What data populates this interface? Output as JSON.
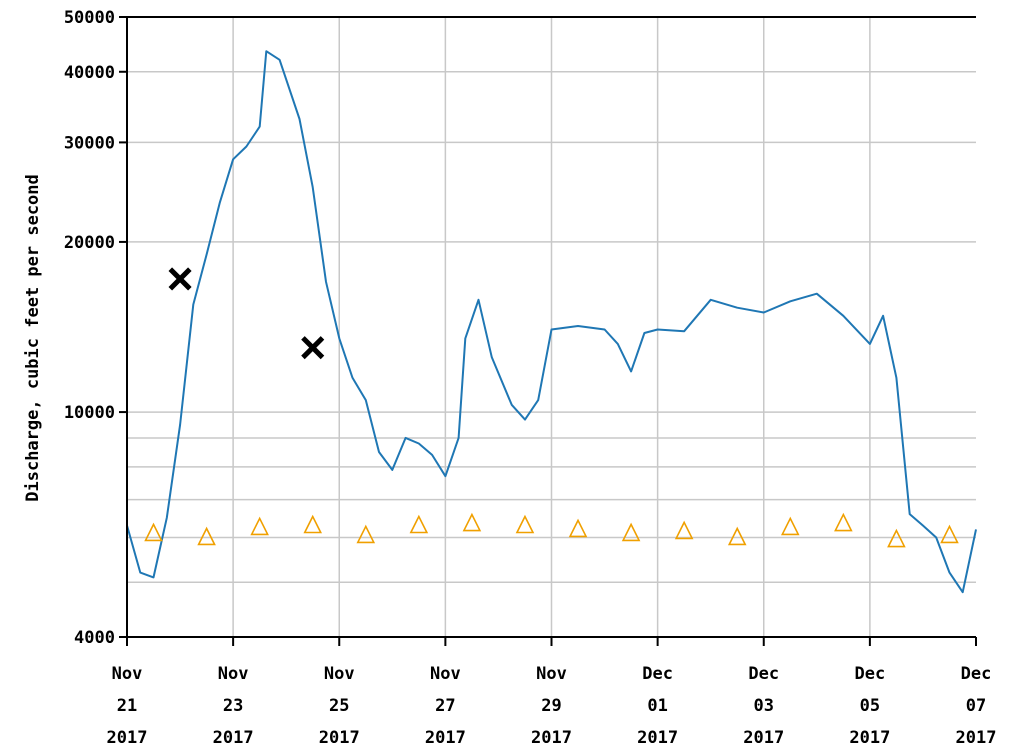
{
  "chart_data": {
    "type": "line",
    "title": "",
    "ylabel": "Discharge, cubic feet per second",
    "xlabel": "",
    "y_scale": "log",
    "ylim": [
      4000,
      50000
    ],
    "xlim": [
      "2017-11-21",
      "2017-12-07"
    ],
    "y_ticks": [
      {
        "value": 4000,
        "label": "4000"
      },
      {
        "value": 10000,
        "label": "10000"
      },
      {
        "value": 20000,
        "label": "20000"
      },
      {
        "value": 30000,
        "label": "30000"
      },
      {
        "value": 40000,
        "label": "40000"
      },
      {
        "value": 50000,
        "label": "50000"
      }
    ],
    "x_ticks": [
      {
        "date": "2017-11-21",
        "month": "Nov",
        "day": "21",
        "year": "2017"
      },
      {
        "date": "2017-11-23",
        "month": "Nov",
        "day": "23",
        "year": "2017"
      },
      {
        "date": "2017-11-25",
        "month": "Nov",
        "day": "25",
        "year": "2017"
      },
      {
        "date": "2017-11-27",
        "month": "Nov",
        "day": "27",
        "year": "2017"
      },
      {
        "date": "2017-11-29",
        "month": "Nov",
        "day": "29",
        "year": "2017"
      },
      {
        "date": "2017-12-01",
        "month": "Dec",
        "day": "01",
        "year": "2017"
      },
      {
        "date": "2017-12-03",
        "month": "Dec",
        "day": "03",
        "year": "2017"
      },
      {
        "date": "2017-12-05",
        "month": "Dec",
        "day": "05",
        "year": "2017"
      },
      {
        "date": "2017-12-07",
        "month": "Dec",
        "day": "07",
        "year": "2017"
      }
    ],
    "grid": true,
    "colors": {
      "discharge": "#1f77b4",
      "median": "#f0a000",
      "measurement": "#000000",
      "grid": "#c8c8c8"
    },
    "series": [
      {
        "style": "line",
        "points": [
          [
            "2017-11-21T00:00",
            6300
          ],
          [
            "2017-11-21T06:00",
            5200
          ],
          [
            "2017-11-21T12:00",
            5100
          ],
          [
            "2017-11-21T18:00",
            6500
          ],
          [
            "2017-11-22T00:00",
            9500
          ],
          [
            "2017-11-22T06:00",
            15500
          ],
          [
            "2017-11-22T12:00",
            19000
          ],
          [
            "2017-11-22T18:00",
            23500
          ],
          [
            "2017-11-23T00:00",
            28000
          ],
          [
            "2017-11-23T06:00",
            29500
          ],
          [
            "2017-11-23T12:00",
            32000
          ],
          [
            "2017-11-23T15:00",
            43500
          ],
          [
            "2017-11-23T21:00",
            42000
          ],
          [
            "2017-11-24T06:00",
            33000
          ],
          [
            "2017-11-24T12:00",
            25000
          ],
          [
            "2017-11-24T18:00",
            17000
          ],
          [
            "2017-11-25T00:00",
            13500
          ],
          [
            "2017-11-25T06:00",
            11500
          ],
          [
            "2017-11-25T12:00",
            10500
          ],
          [
            "2017-11-25T18:00",
            8500
          ],
          [
            "2017-11-26T00:00",
            7900
          ],
          [
            "2017-11-26T06:00",
            9000
          ],
          [
            "2017-11-26T12:00",
            8800
          ],
          [
            "2017-11-26T18:00",
            8400
          ],
          [
            "2017-11-27T00:00",
            7700
          ],
          [
            "2017-11-27T06:00",
            9000
          ],
          [
            "2017-11-27T09:00",
            13500
          ],
          [
            "2017-11-27T15:00",
            15800
          ],
          [
            "2017-11-27T21:00",
            12500
          ],
          [
            "2017-11-28T06:00",
            10300
          ],
          [
            "2017-11-28T12:00",
            9700
          ],
          [
            "2017-11-28T18:00",
            10500
          ],
          [
            "2017-11-29T00:00",
            14000
          ],
          [
            "2017-11-29T12:00",
            14200
          ],
          [
            "2017-11-30T00:00",
            14000
          ],
          [
            "2017-11-30T06:00",
            13200
          ],
          [
            "2017-11-30T12:00",
            11800
          ],
          [
            "2017-11-30T18:00",
            13800
          ],
          [
            "2017-12-01T00:00",
            14000
          ],
          [
            "2017-12-01T12:00",
            13900
          ],
          [
            "2017-12-02T00:00",
            15800
          ],
          [
            "2017-12-02T12:00",
            15300
          ],
          [
            "2017-12-03T00:00",
            15000
          ],
          [
            "2017-12-03T12:00",
            15700
          ],
          [
            "2017-12-04T00:00",
            16200
          ],
          [
            "2017-12-04T12:00",
            14800
          ],
          [
            "2017-12-05T00:00",
            13200
          ],
          [
            "2017-12-05T06:00",
            14800
          ],
          [
            "2017-12-05T12:00",
            11500
          ],
          [
            "2017-12-05T18:00",
            6600
          ],
          [
            "2017-12-06T00:00",
            6300
          ],
          [
            "2017-12-06T06:00",
            6000
          ],
          [
            "2017-12-06T12:00",
            5200
          ],
          [
            "2017-12-06T18:00",
            4800
          ],
          [
            "2017-12-07T00:00",
            6200
          ]
        ]
      },
      {
        "style": "triangle",
        "points": [
          [
            "2017-11-21T12:00",
            6100
          ],
          [
            "2017-11-22T12:00",
            6000
          ],
          [
            "2017-11-23T12:00",
            6250
          ],
          [
            "2017-11-24T12:00",
            6300
          ],
          [
            "2017-11-25T12:00",
            6050
          ],
          [
            "2017-11-26T12:00",
            6300
          ],
          [
            "2017-11-27T12:00",
            6350
          ],
          [
            "2017-11-28T12:00",
            6300
          ],
          [
            "2017-11-29T12:00",
            6200
          ],
          [
            "2017-11-30T12:00",
            6100
          ],
          [
            "2017-12-01T12:00",
            6150
          ],
          [
            "2017-12-02T12:00",
            6000
          ],
          [
            "2017-12-03T12:00",
            6250
          ],
          [
            "2017-12-04T12:00",
            6350
          ],
          [
            "2017-12-05T12:00",
            5950
          ],
          [
            "2017-12-06T12:00",
            6050
          ]
        ]
      },
      {
        "style": "x",
        "points": [
          [
            "2017-11-22T00:00",
            17200
          ],
          [
            "2017-11-24T12:00",
            13000
          ]
        ]
      }
    ]
  }
}
